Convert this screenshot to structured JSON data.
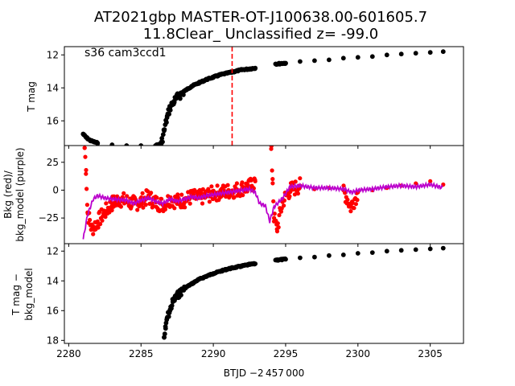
{
  "chart_data": [
    {
      "type": "scatter",
      "panel": "top",
      "title_line1": "AT2021gbp  MASTER-OT-J100638.00-601605.7",
      "title_line2": "11.8Clear_ Unclassified z= -99.0",
      "annotation": "s36 cam3ccd1",
      "ylabel": "T mag",
      "y_inverted": true,
      "ylim": [
        17.5,
        11.5
      ],
      "yticks": [
        12,
        14,
        16
      ],
      "xlim": [
        2279.7,
        2307.3
      ],
      "marker_color": "#000000",
      "vline": {
        "x": 2291.3,
        "color": "#ff0000",
        "style": "dashed"
      },
      "series": [
        {
          "points": [
            [
              2281.0,
              16.8
            ],
            [
              2281.2,
              17.0
            ],
            [
              2281.5,
              17.2
            ],
            [
              2282.0,
              17.35
            ],
            [
              2283.0,
              17.45
            ],
            [
              2284.0,
              17.5
            ],
            [
              2285.0,
              17.5
            ],
            [
              2286.0,
              17.5
            ],
            [
              2286.4,
              17.4
            ],
            [
              2286.6,
              16.6
            ],
            [
              2286.8,
              15.8
            ],
            [
              2287.0,
              15.2
            ],
            [
              2287.3,
              14.8
            ],
            [
              2287.6,
              14.5
            ],
            [
              2288.0,
              14.2
            ],
            [
              2288.5,
              13.9
            ],
            [
              2289.0,
              13.7
            ],
            [
              2289.5,
              13.5
            ],
            [
              2290.0,
              13.35
            ],
            [
              2290.5,
              13.2
            ],
            [
              2291.0,
              13.1
            ],
            [
              2291.5,
              13.0
            ],
            [
              2292.0,
              12.9
            ],
            [
              2292.5,
              12.85
            ],
            [
              2292.9,
              12.8
            ],
            [
              2294.3,
              12.55
            ],
            [
              2295.0,
              12.5
            ],
            [
              2296.0,
              12.4
            ],
            [
              2297.0,
              12.35
            ],
            [
              2298.0,
              12.3
            ],
            [
              2299.0,
              12.2
            ],
            [
              2300.0,
              12.15
            ],
            [
              2301.0,
              12.1
            ],
            [
              2302.0,
              12.0
            ],
            [
              2303.0,
              11.95
            ],
            [
              2304.0,
              11.9
            ],
            [
              2305.0,
              11.85
            ],
            [
              2305.9,
              11.8
            ]
          ]
        }
      ]
    },
    {
      "type": "scatter",
      "panel": "middle",
      "ylabel_line1": "Bkg (red)/",
      "ylabel_line2": "bkg_model (purple)",
      "ylim": [
        -48,
        40
      ],
      "yticks": [
        25,
        0,
        -25
      ],
      "ytick_labels": [
        "25",
        "0",
        "−25"
      ],
      "xlim": [
        2279.7,
        2307.3
      ],
      "series": [
        {
          "name": "Bkg",
          "color": "#ff0000",
          "points": [
            [
              2281.1,
              38
            ],
            [
              2281.2,
              18
            ],
            [
              2281.3,
              -20
            ],
            [
              2281.6,
              -35
            ],
            [
              2282.0,
              -28
            ],
            [
              2282.5,
              -20
            ],
            [
              2283.0,
              -12
            ],
            [
              2283.5,
              -8
            ],
            [
              2284.0,
              -10
            ],
            [
              2284.5,
              -12
            ],
            [
              2285.0,
              -10
            ],
            [
              2285.5,
              -6
            ],
            [
              2286.0,
              -11
            ],
            [
              2286.5,
              -13
            ],
            [
              2287.0,
              -8
            ],
            [
              2287.5,
              -10
            ],
            [
              2288.0,
              -9
            ],
            [
              2288.5,
              -6
            ],
            [
              2289.0,
              -7
            ],
            [
              2289.5,
              -5
            ],
            [
              2290.0,
              -3
            ],
            [
              2290.5,
              -2
            ],
            [
              2291.0,
              -1
            ],
            [
              2291.5,
              0
            ],
            [
              2292.0,
              2
            ],
            [
              2292.5,
              3
            ],
            [
              2292.9,
              8
            ],
            [
              2294.0,
              37
            ],
            [
              2294.1,
              10
            ],
            [
              2294.2,
              -25
            ],
            [
              2294.4,
              -35
            ],
            [
              2294.8,
              -10
            ],
            [
              2295.3,
              0
            ],
            [
              2296.0,
              4
            ],
            [
              2297.0,
              1
            ],
            [
              2298.0,
              2
            ],
            [
              2299.0,
              0
            ],
            [
              2299.5,
              -15
            ],
            [
              2300.0,
              -2
            ],
            [
              2301.0,
              0
            ],
            [
              2302.0,
              2
            ],
            [
              2303.0,
              4
            ],
            [
              2304.0,
              6
            ],
            [
              2305.0,
              8
            ],
            [
              2305.9,
              5
            ]
          ]
        },
        {
          "name": "bkg_model",
          "color": "#bb00cc",
          "points": [
            [
              2281.0,
              -44
            ],
            [
              2281.3,
              -22
            ],
            [
              2281.7,
              -8
            ],
            [
              2282.0,
              -5
            ],
            [
              2282.5,
              -7
            ],
            [
              2283.0,
              -8
            ],
            [
              2284.0,
              -9
            ],
            [
              2284.5,
              -12
            ],
            [
              2285.0,
              -9
            ],
            [
              2285.5,
              -7
            ],
            [
              2286.0,
              -10
            ],
            [
              2286.5,
              -12
            ],
            [
              2287.0,
              -8
            ],
            [
              2287.5,
              -10
            ],
            [
              2288.0,
              -8
            ],
            [
              2288.5,
              -6
            ],
            [
              2289.0,
              -7
            ],
            [
              2289.5,
              -5
            ],
            [
              2290.0,
              -4
            ],
            [
              2290.5,
              -3
            ],
            [
              2291.0,
              -2
            ],
            [
              2291.5,
              -1
            ],
            [
              2292.0,
              0
            ],
            [
              2292.5,
              1
            ],
            [
              2292.9,
              -2
            ],
            [
              2293.2,
              -12
            ],
            [
              2293.6,
              -14
            ],
            [
              2293.9,
              -28
            ],
            [
              2294.2,
              -15
            ],
            [
              2294.8,
              -7
            ],
            [
              2295.3,
              3
            ],
            [
              2296.0,
              4
            ],
            [
              2297.0,
              2
            ],
            [
              2298.0,
              2
            ],
            [
              2299.0,
              1
            ],
            [
              2299.6,
              -2
            ],
            [
              2300.0,
              0
            ],
            [
              2301.0,
              1
            ],
            [
              2302.0,
              3
            ],
            [
              2303.0,
              4
            ],
            [
              2304.0,
              3
            ],
            [
              2305.0,
              5
            ],
            [
              2305.9,
              2
            ]
          ]
        }
      ]
    },
    {
      "type": "scatter",
      "panel": "bottom",
      "ylabel_line1": "T mag −",
      "ylabel_line2": "bkg_model",
      "y_inverted": true,
      "ylim": [
        18.2,
        11.5
      ],
      "yticks": [
        12,
        14,
        16,
        18
      ],
      "xlim": [
        2279.7,
        2307.3
      ],
      "xticks": [
        2280,
        2285,
        2290,
        2295,
        2300,
        2305
      ],
      "xlabel": "BTJD −2 457 000",
      "marker_color": "#000000",
      "series": [
        {
          "points": [
            [
              2286.6,
              17.8
            ],
            [
              2286.7,
              17.2
            ],
            [
              2286.8,
              16.5
            ],
            [
              2287.0,
              16.0
            ],
            [
              2287.2,
              15.4
            ],
            [
              2287.5,
              15.0
            ],
            [
              2288.0,
              14.5
            ],
            [
              2288.5,
              14.2
            ],
            [
              2289.0,
              13.9
            ],
            [
              2289.5,
              13.7
            ],
            [
              2290.0,
              13.5
            ],
            [
              2290.5,
              13.35
            ],
            [
              2291.0,
              13.2
            ],
            [
              2291.5,
              13.1
            ],
            [
              2292.0,
              13.0
            ],
            [
              2292.5,
              12.9
            ],
            [
              2292.9,
              12.85
            ],
            [
              2294.3,
              12.6
            ],
            [
              2295.0,
              12.55
            ],
            [
              2296.0,
              12.45
            ],
            [
              2297.0,
              12.4
            ],
            [
              2298.0,
              12.3
            ],
            [
              2299.0,
              12.25
            ],
            [
              2300.0,
              12.15
            ],
            [
              2301.0,
              12.1
            ],
            [
              2302.0,
              12.0
            ],
            [
              2303.0,
              11.95
            ],
            [
              2304.0,
              11.9
            ],
            [
              2305.0,
              11.85
            ],
            [
              2305.9,
              11.8
            ]
          ]
        }
      ]
    }
  ]
}
